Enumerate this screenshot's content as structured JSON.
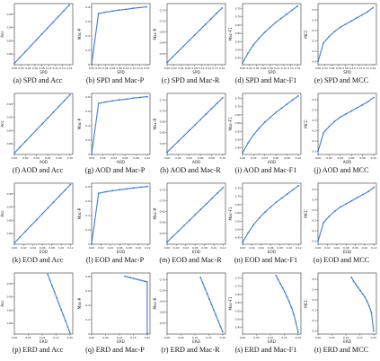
{
  "chart_data": [
    {
      "id": "a",
      "type": "line",
      "caption": "(a) SPD and Acc",
      "xlabel": "SPD",
      "ylabel": "Acc",
      "xticks": [
        "0.00",
        "0.02",
        "0.04",
        "0.06",
        "0.08",
        "0.10",
        "0.12",
        "0.14",
        "0.16"
      ],
      "yticks": [
        "0.80",
        "0.85",
        "0.90",
        "0.95"
      ],
      "xlim": [
        0,
        0.17
      ],
      "ylim": [
        0.76,
        0.99
      ],
      "x": [
        0.0,
        0.016,
        0.032,
        0.048,
        0.064,
        0.08,
        0.096,
        0.112,
        0.128,
        0.144,
        0.16
      ],
      "y": [
        0.765,
        0.787,
        0.809,
        0.831,
        0.853,
        0.875,
        0.897,
        0.919,
        0.941,
        0.963,
        0.985
      ]
    },
    {
      "id": "b",
      "type": "line",
      "caption": "(b) SPD and Mac-P",
      "xlabel": "SPD",
      "ylabel": "Mac-P",
      "xticks": [
        "0.00",
        "0.02",
        "0.04",
        "0.06",
        "0.08",
        "0.10",
        "0.12",
        "0.14",
        "0.16"
      ],
      "yticks": [
        "0",
        "0.2",
        "0.4",
        "0.6",
        "0.8"
      ],
      "xlim": [
        0,
        0.17
      ],
      "ylim": [
        0,
        0.85
      ],
      "x": [
        0.0,
        0.02,
        0.04,
        0.06,
        0.08,
        0.1,
        0.12,
        0.14,
        0.16
      ],
      "y": [
        0.01,
        0.71,
        0.73,
        0.745,
        0.76,
        0.77,
        0.785,
        0.795,
        0.805
      ]
    },
    {
      "id": "c",
      "type": "line",
      "caption": "(c) SPD and Mac-R",
      "xlabel": "SPD",
      "ylabel": "Mac-R",
      "xticks": [
        "0.00",
        "0.02",
        "0.04",
        "0.06",
        "0.08",
        "0.10",
        "0.12",
        "0.14",
        "0.16"
      ],
      "yticks": [
        "0.55",
        "0.60",
        "0.65",
        "0.70",
        "0.75"
      ],
      "xlim": [
        0,
        0.17
      ],
      "ylim": [
        0.5,
        0.78
      ],
      "x": [
        0.0,
        0.016,
        0.032,
        0.048,
        0.064,
        0.08,
        0.096,
        0.112,
        0.128,
        0.144,
        0.16
      ],
      "y": [
        0.51,
        0.535,
        0.56,
        0.585,
        0.61,
        0.635,
        0.66,
        0.685,
        0.71,
        0.735,
        0.76
      ]
    },
    {
      "id": "d",
      "type": "line",
      "caption": "(d) SPD and Mac-F1",
      "xlabel": "SPD",
      "ylabel": "Mac-F1",
      "xticks": [
        "0.00",
        "0.02",
        "0.04",
        "0.06",
        "0.08",
        "0.10",
        "0.12",
        "0.14",
        "0.16"
      ],
      "yticks": [
        "0.45",
        "0.50",
        "0.55",
        "0.60",
        "0.65",
        "0.70",
        "0.75"
      ],
      "xlim": [
        0,
        0.17
      ],
      "ylim": [
        0.41,
        0.78
      ],
      "x": [
        0.0,
        0.016,
        0.032,
        0.048,
        0.064,
        0.08,
        0.096,
        0.112,
        0.128,
        0.144,
        0.16
      ],
      "y": [
        0.42,
        0.48,
        0.53,
        0.57,
        0.605,
        0.635,
        0.665,
        0.69,
        0.715,
        0.74,
        0.765
      ]
    },
    {
      "id": "e",
      "type": "line",
      "caption": "(e) SPD and MCC",
      "xlabel": "SPD",
      "ylabel": "MCC",
      "xticks": [
        "0.00",
        "0.02",
        "0.04",
        "0.06",
        "0.08",
        "0.10",
        "0.12",
        "0.14",
        "0.16"
      ],
      "yticks": [
        "0.0",
        "0.1",
        "0.2",
        "0.3",
        "0.4",
        "0.5"
      ],
      "xlim": [
        0,
        0.17
      ],
      "ylim": [
        -0.03,
        0.56
      ],
      "x": [
        0.0,
        0.016,
        0.032,
        0.048,
        0.064,
        0.08,
        0.096,
        0.112,
        0.128,
        0.144,
        0.16
      ],
      "y": [
        0.0,
        0.18,
        0.24,
        0.29,
        0.33,
        0.36,
        0.39,
        0.42,
        0.45,
        0.48,
        0.52
      ]
    },
    {
      "id": "f",
      "type": "line",
      "caption": "(f) AOD and Acc",
      "xlabel": "AOD",
      "ylabel": "Acc",
      "xticks": [
        "0.00",
        "0.02",
        "0.04",
        "0.06",
        "0.08",
        "0.10"
      ],
      "yticks": [
        "0.80",
        "0.85",
        "0.90",
        "0.95"
      ],
      "xlim": [
        0,
        0.105
      ],
      "ylim": [
        0.76,
        0.99
      ],
      "x": [
        0.0,
        0.01,
        0.02,
        0.03,
        0.04,
        0.05,
        0.06,
        0.07,
        0.08,
        0.09,
        0.1
      ],
      "y": [
        0.765,
        0.787,
        0.809,
        0.831,
        0.853,
        0.875,
        0.897,
        0.919,
        0.941,
        0.963,
        0.985
      ]
    },
    {
      "id": "g",
      "type": "line",
      "caption": "(g) AOD and Mac-P",
      "xlabel": "AOD",
      "ylabel": "Mac-P",
      "xticks": [
        "0.00",
        "0.02",
        "0.04",
        "0.06",
        "0.08",
        "0.10"
      ],
      "yticks": [
        "0",
        "0.2",
        "0.4",
        "0.6",
        "0.8"
      ],
      "xlim": [
        0,
        0.105
      ],
      "ylim": [
        0,
        0.85
      ],
      "x": [
        0.0,
        0.0125,
        0.025,
        0.0375,
        0.05,
        0.0625,
        0.075,
        0.0875,
        0.1
      ],
      "y": [
        0.01,
        0.71,
        0.73,
        0.745,
        0.76,
        0.77,
        0.785,
        0.795,
        0.805
      ]
    },
    {
      "id": "h",
      "type": "line",
      "caption": "(h) AOD and Mac-R",
      "xlabel": "AOD",
      "ylabel": "Mac-R",
      "xticks": [
        "0.00",
        "0.02",
        "0.04",
        "0.06",
        "0.08",
        "0.10"
      ],
      "yticks": [
        "0.55",
        "0.60",
        "0.65",
        "0.70",
        "0.75"
      ],
      "xlim": [
        0,
        0.105
      ],
      "ylim": [
        0.5,
        0.78
      ],
      "x": [
        0.0,
        0.01,
        0.02,
        0.03,
        0.04,
        0.05,
        0.06,
        0.07,
        0.08,
        0.09,
        0.1
      ],
      "y": [
        0.51,
        0.535,
        0.56,
        0.585,
        0.61,
        0.635,
        0.66,
        0.685,
        0.71,
        0.735,
        0.76
      ]
    },
    {
      "id": "i",
      "type": "line",
      "caption": "(i) AOD and Mac-F1",
      "xlabel": "AOD",
      "ylabel": "Mac-F1",
      "xticks": [
        "0.00",
        "0.02",
        "0.04",
        "0.06",
        "0.08",
        "0.10"
      ],
      "yticks": [
        "0.45",
        "0.50",
        "0.55",
        "0.60",
        "0.65",
        "0.70",
        "0.75"
      ],
      "xlim": [
        0,
        0.105
      ],
      "ylim": [
        0.41,
        0.78
      ],
      "x": [
        0.0,
        0.01,
        0.02,
        0.03,
        0.04,
        0.05,
        0.06,
        0.07,
        0.08,
        0.09,
        0.1
      ],
      "y": [
        0.42,
        0.48,
        0.53,
        0.57,
        0.605,
        0.635,
        0.665,
        0.69,
        0.715,
        0.74,
        0.765
      ]
    },
    {
      "id": "j",
      "type": "line",
      "caption": "(j) AOD and MCC",
      "xlabel": "AOD",
      "ylabel": "MCC",
      "xticks": [
        "0.00",
        "0.02",
        "0.04",
        "0.06",
        "0.08",
        "0.10"
      ],
      "yticks": [
        "0.0",
        "0.1",
        "0.2",
        "0.3",
        "0.4",
        "0.5"
      ],
      "xlim": [
        0,
        0.105
      ],
      "ylim": [
        -0.03,
        0.56
      ],
      "x": [
        0.0,
        0.01,
        0.02,
        0.03,
        0.04,
        0.05,
        0.06,
        0.07,
        0.08,
        0.09,
        0.1
      ],
      "y": [
        0.0,
        0.18,
        0.24,
        0.29,
        0.33,
        0.36,
        0.39,
        0.42,
        0.45,
        0.48,
        0.52
      ]
    },
    {
      "id": "k",
      "type": "line",
      "caption": "(k) EOD and Acc",
      "xlabel": "EOD",
      "ylabel": "Acc",
      "xticks": [
        "0.00",
        "0.02",
        "0.04",
        "0.06",
        "0.08",
        "0.10",
        "0.12"
      ],
      "yticks": [
        "0.80",
        "0.85",
        "0.90",
        "0.95"
      ],
      "xlim": [
        0,
        0.125
      ],
      "ylim": [
        0.76,
        0.99
      ],
      "x": [
        0.0,
        0.012,
        0.024,
        0.036,
        0.048,
        0.06,
        0.072,
        0.084,
        0.096,
        0.108,
        0.12
      ],
      "y": [
        0.765,
        0.787,
        0.809,
        0.831,
        0.853,
        0.875,
        0.897,
        0.919,
        0.941,
        0.963,
        0.985
      ]
    },
    {
      "id": "l",
      "type": "line",
      "caption": "(l) EOD and Mac-P",
      "xlabel": "EOD",
      "ylabel": "Mac-P",
      "xticks": [
        "0.00",
        "0.02",
        "0.04",
        "0.06",
        "0.08",
        "0.10",
        "0.12"
      ],
      "yticks": [
        "0",
        "0.2",
        "0.4",
        "0.6",
        "0.8"
      ],
      "xlim": [
        0,
        0.125
      ],
      "ylim": [
        0,
        0.85
      ],
      "x": [
        0.0,
        0.015,
        0.03,
        0.045,
        0.06,
        0.075,
        0.09,
        0.105,
        0.12
      ],
      "y": [
        0.01,
        0.71,
        0.73,
        0.745,
        0.76,
        0.77,
        0.785,
        0.795,
        0.805
      ]
    },
    {
      "id": "m",
      "type": "line",
      "caption": "(m) EOD and Mac-R",
      "xlabel": "EOD",
      "ylabel": "Mac-R",
      "xticks": [
        "0.00",
        "0.02",
        "0.04",
        "0.06",
        "0.08",
        "0.10",
        "0.12"
      ],
      "yticks": [
        "0.55",
        "0.60",
        "0.65",
        "0.70",
        "0.75"
      ],
      "xlim": [
        0,
        0.125
      ],
      "ylim": [
        0.5,
        0.78
      ],
      "x": [
        0.0,
        0.012,
        0.024,
        0.036,
        0.048,
        0.06,
        0.072,
        0.084,
        0.096,
        0.108,
        0.12
      ],
      "y": [
        0.51,
        0.535,
        0.56,
        0.585,
        0.61,
        0.635,
        0.66,
        0.685,
        0.71,
        0.735,
        0.76
      ]
    },
    {
      "id": "n",
      "type": "line",
      "caption": "(n) EOD and Mac-F1",
      "xlabel": "EOD",
      "ylabel": "Mac-F1",
      "xticks": [
        "0.00",
        "0.02",
        "0.04",
        "0.06",
        "0.08",
        "0.10",
        "0.12"
      ],
      "yticks": [
        "0.45",
        "0.50",
        "0.55",
        "0.60",
        "0.65",
        "0.70",
        "0.75"
      ],
      "xlim": [
        0,
        0.125
      ],
      "ylim": [
        0.41,
        0.78
      ],
      "x": [
        0.0,
        0.012,
        0.024,
        0.036,
        0.048,
        0.06,
        0.072,
        0.084,
        0.096,
        0.108,
        0.12
      ],
      "y": [
        0.42,
        0.48,
        0.53,
        0.57,
        0.605,
        0.635,
        0.665,
        0.69,
        0.715,
        0.74,
        0.765
      ]
    },
    {
      "id": "o",
      "type": "line",
      "caption": "(o) EOD and MCC",
      "xlabel": "EOD",
      "ylabel": "MCC",
      "xticks": [
        "0.00",
        "0.02",
        "0.04",
        "0.06",
        "0.08",
        "0.10",
        "0.12"
      ],
      "yticks": [
        "0.0",
        "0.1",
        "0.2",
        "0.3",
        "0.4",
        "0.5"
      ],
      "xlim": [
        0,
        0.125
      ],
      "ylim": [
        -0.03,
        0.56
      ],
      "x": [
        0.0,
        0.012,
        0.024,
        0.036,
        0.048,
        0.06,
        0.072,
        0.084,
        0.096,
        0.108,
        0.12
      ],
      "y": [
        0.0,
        0.18,
        0.24,
        0.29,
        0.33,
        0.36,
        0.39,
        0.42,
        0.45,
        0.48,
        0.52
      ]
    },
    {
      "id": "p",
      "type": "line",
      "caption": "(p) ERD and Acc",
      "xlabel": "ERD",
      "ylabel": "Acc",
      "xticks": [
        "0.00",
        "0.05",
        "0.10",
        "0.15",
        "0.20"
      ],
      "yticks": [
        "0.80",
        "0.85",
        "0.90",
        "0.95"
      ],
      "xlim": [
        0,
        0.21
      ],
      "ylim": [
        0.76,
        0.99
      ],
      "x": [
        0.12,
        0.128,
        0.136,
        0.144,
        0.152,
        0.16,
        0.168,
        0.176,
        0.184,
        0.192,
        0.2
      ],
      "y": [
        0.985,
        0.963,
        0.941,
        0.919,
        0.897,
        0.875,
        0.853,
        0.831,
        0.809,
        0.787,
        0.765
      ]
    },
    {
      "id": "q",
      "type": "line",
      "caption": "(q) ERD and Mac-P",
      "xlabel": "ERD",
      "ylabel": "Mac-P",
      "xticks": [
        "0.00",
        "0.05",
        "0.10",
        "0.15",
        "0.20"
      ],
      "yticks": [
        "0",
        "0.2",
        "0.4",
        "0.6",
        "0.8"
      ],
      "xlim": [
        0,
        0.21
      ],
      "ylim": [
        0,
        0.85
      ],
      "x": [
        0.12,
        0.13,
        0.14,
        0.15,
        0.16,
        0.17,
        0.18,
        0.19,
        0.2,
        0.2
      ],
      "y": [
        0.805,
        0.795,
        0.785,
        0.775,
        0.765,
        0.755,
        0.745,
        0.735,
        0.725,
        0.01
      ]
    },
    {
      "id": "r",
      "type": "line",
      "caption": "(r) ERD and Mac-R",
      "xlabel": "ERD",
      "ylabel": "Mac-R",
      "xticks": [
        "0.00",
        "0.05",
        "0.10",
        "0.15",
        "0.20"
      ],
      "yticks": [
        "0.55",
        "0.60",
        "0.65",
        "0.70",
        "0.75"
      ],
      "xlim": [
        0,
        0.21
      ],
      "ylim": [
        0.5,
        0.78
      ],
      "x": [
        0.12,
        0.128,
        0.136,
        0.144,
        0.152,
        0.16,
        0.168,
        0.176,
        0.184,
        0.192,
        0.2
      ],
      "y": [
        0.76,
        0.735,
        0.71,
        0.685,
        0.66,
        0.635,
        0.61,
        0.585,
        0.56,
        0.535,
        0.51
      ]
    },
    {
      "id": "s",
      "type": "line",
      "caption": "(s) ERD and Mac-F1",
      "xlabel": "ERD",
      "ylabel": "Mac-F1",
      "xticks": [
        "0.00",
        "0.05",
        "0.10",
        "0.15",
        "0.20"
      ],
      "yticks": [
        "0.45",
        "0.50",
        "0.55",
        "0.60",
        "0.65",
        "0.70",
        "0.75"
      ],
      "xlim": [
        0,
        0.21
      ],
      "ylim": [
        0.41,
        0.78
      ],
      "x": [
        0.12,
        0.128,
        0.136,
        0.144,
        0.152,
        0.16,
        0.168,
        0.176,
        0.184,
        0.192,
        0.2
      ],
      "y": [
        0.765,
        0.74,
        0.715,
        0.69,
        0.665,
        0.635,
        0.605,
        0.57,
        0.53,
        0.48,
        0.42
      ]
    },
    {
      "id": "t",
      "type": "line",
      "caption": "(t) ERD and MCC",
      "xlabel": "ERD",
      "ylabel": "MCC",
      "xticks": [
        "0.00",
        "0.05",
        "0.10",
        "0.15",
        "0.20"
      ],
      "yticks": [
        "0.0",
        "0.1",
        "0.2",
        "0.3",
        "0.4",
        "0.5"
      ],
      "xlim": [
        0,
        0.21
      ],
      "ylim": [
        -0.03,
        0.56
      ],
      "x": [
        0.12,
        0.128,
        0.136,
        0.144,
        0.152,
        0.16,
        0.168,
        0.176,
        0.184,
        0.192,
        0.2
      ],
      "y": [
        0.52,
        0.48,
        0.45,
        0.42,
        0.39,
        0.36,
        0.33,
        0.29,
        0.24,
        0.18,
        0.0
      ]
    }
  ],
  "style": {
    "line_color": "#3b7dd8",
    "axis_color": "#333333"
  }
}
